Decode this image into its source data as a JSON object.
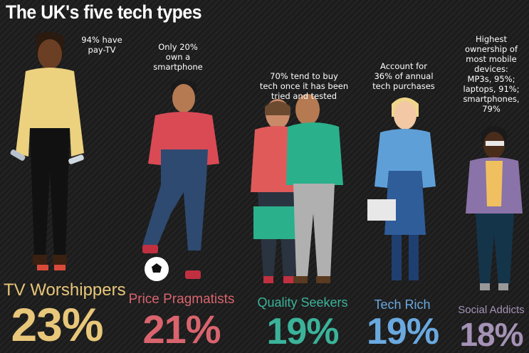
{
  "title": "The UK's five tech types",
  "chart_data": {
    "type": "bar",
    "title": "The UK's five tech types",
    "categories": [
      "TV Worshippers",
      "Price Pragmatists",
      "Quality Seekers",
      "Tech Rich",
      "Social Addicts"
    ],
    "values": [
      23,
      21,
      19,
      19,
      18
    ],
    "value_labels": [
      "23%",
      "21%",
      "19%",
      "19%",
      "18%"
    ],
    "unit": "%",
    "annotations": [
      [
        "94% have",
        "pay-TV"
      ],
      [
        "Only 20%",
        "own a",
        "smartphone"
      ],
      [
        "70% tend to buy",
        "tech once it has been",
        "tried and tested"
      ],
      [
        "Account for",
        "36% of annual",
        "tech purchases"
      ],
      [
        "Highest",
        "ownership of",
        "most mobile",
        "devices:",
        "MP3s, 95%;",
        "laptops, 91%;",
        "smartphones,",
        "79%"
      ]
    ],
    "colors": [
      "#e8c77a",
      "#d9646e",
      "#3bb39a",
      "#6aa9e0",
      "#a592b6"
    ]
  }
}
